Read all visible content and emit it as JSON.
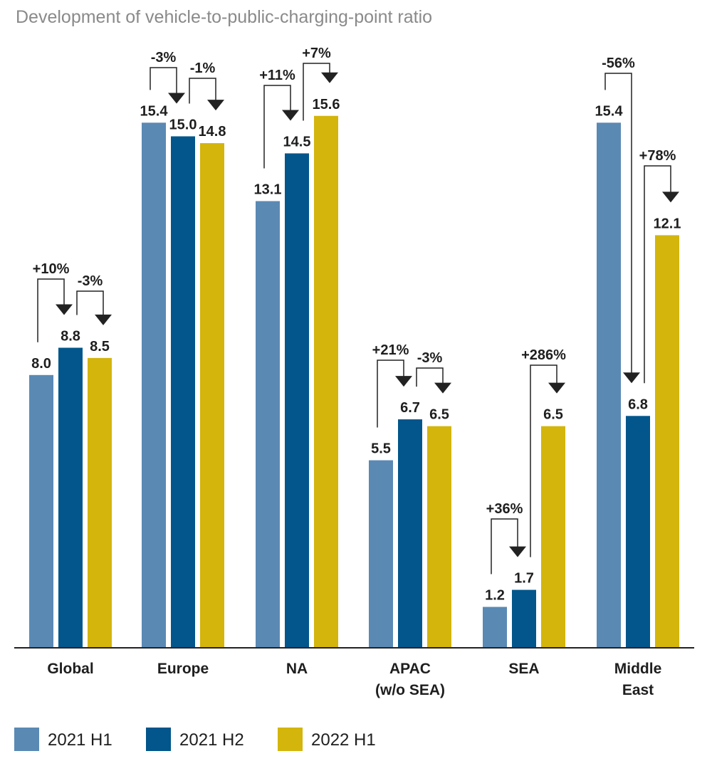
{
  "chart_data": {
    "type": "bar",
    "title": "Development of vehicle-to-public-charging-point ratio",
    "categories": [
      [
        "Global"
      ],
      [
        "Europe"
      ],
      [
        "NA"
      ],
      [
        "APAC",
        "(w/o SEA)"
      ],
      [
        "SEA"
      ],
      [
        "Middle",
        "East"
      ]
    ],
    "series": [
      {
        "name": "2021 H1",
        "color": "#5a89b4",
        "values": [
          8.0,
          15.4,
          13.1,
          5.5,
          1.2,
          15.4
        ]
      },
      {
        "name": "2021 H2",
        "color": "#02568b",
        "values": [
          8.8,
          15.0,
          14.5,
          6.7,
          1.7,
          6.8
        ]
      },
      {
        "name": "2022 H1",
        "color": "#d3b50c",
        "values": [
          8.5,
          14.8,
          15.6,
          6.5,
          6.5,
          12.1
        ]
      }
    ],
    "value_labels": [
      [
        "8.0",
        "8.8",
        "8.5"
      ],
      [
        "15.4",
        "15.0",
        "14.8"
      ],
      [
        "13.1",
        "14.5",
        "15.6"
      ],
      [
        "5.5",
        "6.7",
        "6.5"
      ],
      [
        "1.2",
        "1.7",
        "6.5"
      ],
      [
        "15.4",
        "6.8",
        "12.1"
      ]
    ],
    "annotations": [
      {
        "category": 0,
        "from": 0,
        "to": 1,
        "label": "+10%"
      },
      {
        "category": 0,
        "from": 1,
        "to": 2,
        "label": "-3%"
      },
      {
        "category": 1,
        "from": 0,
        "to": 1,
        "label": "-3%"
      },
      {
        "category": 1,
        "from": 1,
        "to": 2,
        "label": "-1%"
      },
      {
        "category": 2,
        "from": 0,
        "to": 1,
        "label": "+11%"
      },
      {
        "category": 2,
        "from": 1,
        "to": 2,
        "label": "+7%"
      },
      {
        "category": 3,
        "from": 0,
        "to": 1,
        "label": "+21%"
      },
      {
        "category": 3,
        "from": 1,
        "to": 2,
        "label": "-3%"
      },
      {
        "category": 4,
        "from": 0,
        "to": 1,
        "label": "+36%"
      },
      {
        "category": 4,
        "from": 1,
        "to": 2,
        "label": "+286%"
      },
      {
        "category": 5,
        "from": 0,
        "to": 1,
        "label": "-56%"
      },
      {
        "category": 5,
        "from": 1,
        "to": 2,
        "label": "+78%"
      }
    ],
    "ylim": [
      0,
      16
    ],
    "grid": false,
    "legend": "bottom-left",
    "xlabel": "",
    "ylabel": ""
  }
}
